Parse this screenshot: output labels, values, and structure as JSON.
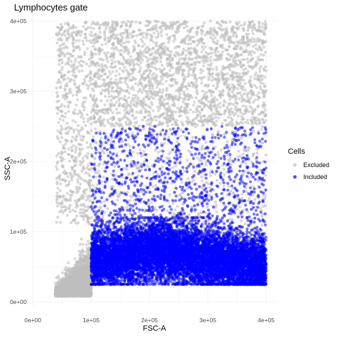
{
  "chart_data": {
    "type": "scatter",
    "title": "Lymphocytes gate",
    "xlabel": "FSC-A",
    "ylabel": "SSC-A",
    "xlim": [
      -7000,
      418000
    ],
    "ylim": [
      -6000,
      408000
    ],
    "x_ticks": [
      {
        "value": 0,
        "label": "0e+00"
      },
      {
        "value": 100000,
        "label": "1e+05"
      },
      {
        "value": 200000,
        "label": "2e+05"
      },
      {
        "value": 300000,
        "label": "3e+05"
      },
      {
        "value": 400000,
        "label": "4e+05"
      }
    ],
    "y_ticks": [
      {
        "value": 0,
        "label": "0e+00"
      },
      {
        "value": 100000,
        "label": "1e+05"
      },
      {
        "value": 200000,
        "label": "2e+05"
      },
      {
        "value": 300000,
        "label": "3e+05"
      },
      {
        "value": 400000,
        "label": "4e+05"
      }
    ],
    "grid": true,
    "legend": {
      "title": "Cells",
      "position": "right",
      "entries": [
        {
          "label": "Excluded",
          "color": "#bebebe"
        },
        {
          "label": "Included",
          "color": "#0000ff"
        }
      ]
    },
    "series": [
      {
        "name": "Excluded",
        "color": "#bebebe",
        "distribution": [
          {
            "count": 3800,
            "x": [
              38000,
              100000
            ],
            "y": [
              8000,
              110000
            ],
            "shape": "debris-cluster"
          },
          {
            "count": 2200,
            "x": [
              100000,
              400000
            ],
            "y": [
              250000,
              400000
            ],
            "shape": "uniform"
          },
          {
            "count": 600,
            "x": [
              40000,
              100000
            ],
            "y": [
              110000,
              400000
            ],
            "shape": "uniform"
          },
          {
            "count": 1000,
            "x": [
              100000,
              400000
            ],
            "y": [
              25000,
              250000
            ],
            "shape": "uniform-underlay"
          }
        ]
      },
      {
        "name": "Included",
        "color": "#0000ff",
        "gate": {
          "x": [
            100000,
            400000
          ],
          "y": [
            25000,
            250000
          ]
        },
        "distribution": [
          {
            "count": 9000,
            "x": [
              100000,
              400000
            ],
            "y": [
              25000,
              120000
            ],
            "shape": "dense-core"
          },
          {
            "count": 1800,
            "x": [
              100000,
              400000
            ],
            "y": [
              25000,
              250000
            ],
            "shape": "sparse-upper"
          }
        ]
      }
    ]
  }
}
